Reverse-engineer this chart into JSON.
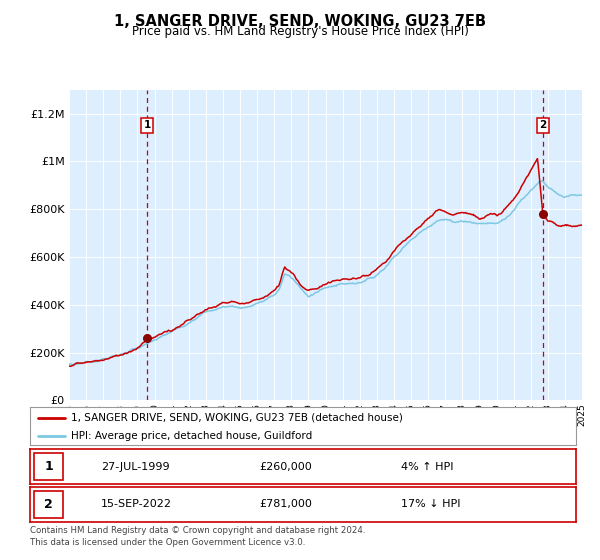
{
  "title": "1, SANGER DRIVE, SEND, WOKING, GU23 7EB",
  "subtitle": "Price paid vs. HM Land Registry's House Price Index (HPI)",
  "legend_line1": "1, SANGER DRIVE, SEND, WOKING, GU23 7EB (detached house)",
  "legend_line2": "HPI: Average price, detached house, Guildford",
  "annotation1_date": "27-JUL-1999",
  "annotation1_price": "£260,000",
  "annotation1_hpi": "4% ↑ HPI",
  "annotation2_date": "15-SEP-2022",
  "annotation2_price": "£781,000",
  "annotation2_hpi": "17% ↓ HPI",
  "footnote": "Contains HM Land Registry data © Crown copyright and database right 2024.\nThis data is licensed under the Open Government Licence v3.0.",
  "sale1_year": 1999.57,
  "sale1_price": 260000,
  "sale2_year": 2022.71,
  "sale2_price": 781000,
  "hpi_color": "#7ec8e3",
  "price_color": "#cc0000",
  "marker_color": "#8b0000",
  "dashed_color": "#cc0000",
  "plot_bg": "#ddeeff",
  "grid_color": "#ffffff",
  "ylim_max": 1300000,
  "start_year": 1995,
  "end_year": 2025
}
